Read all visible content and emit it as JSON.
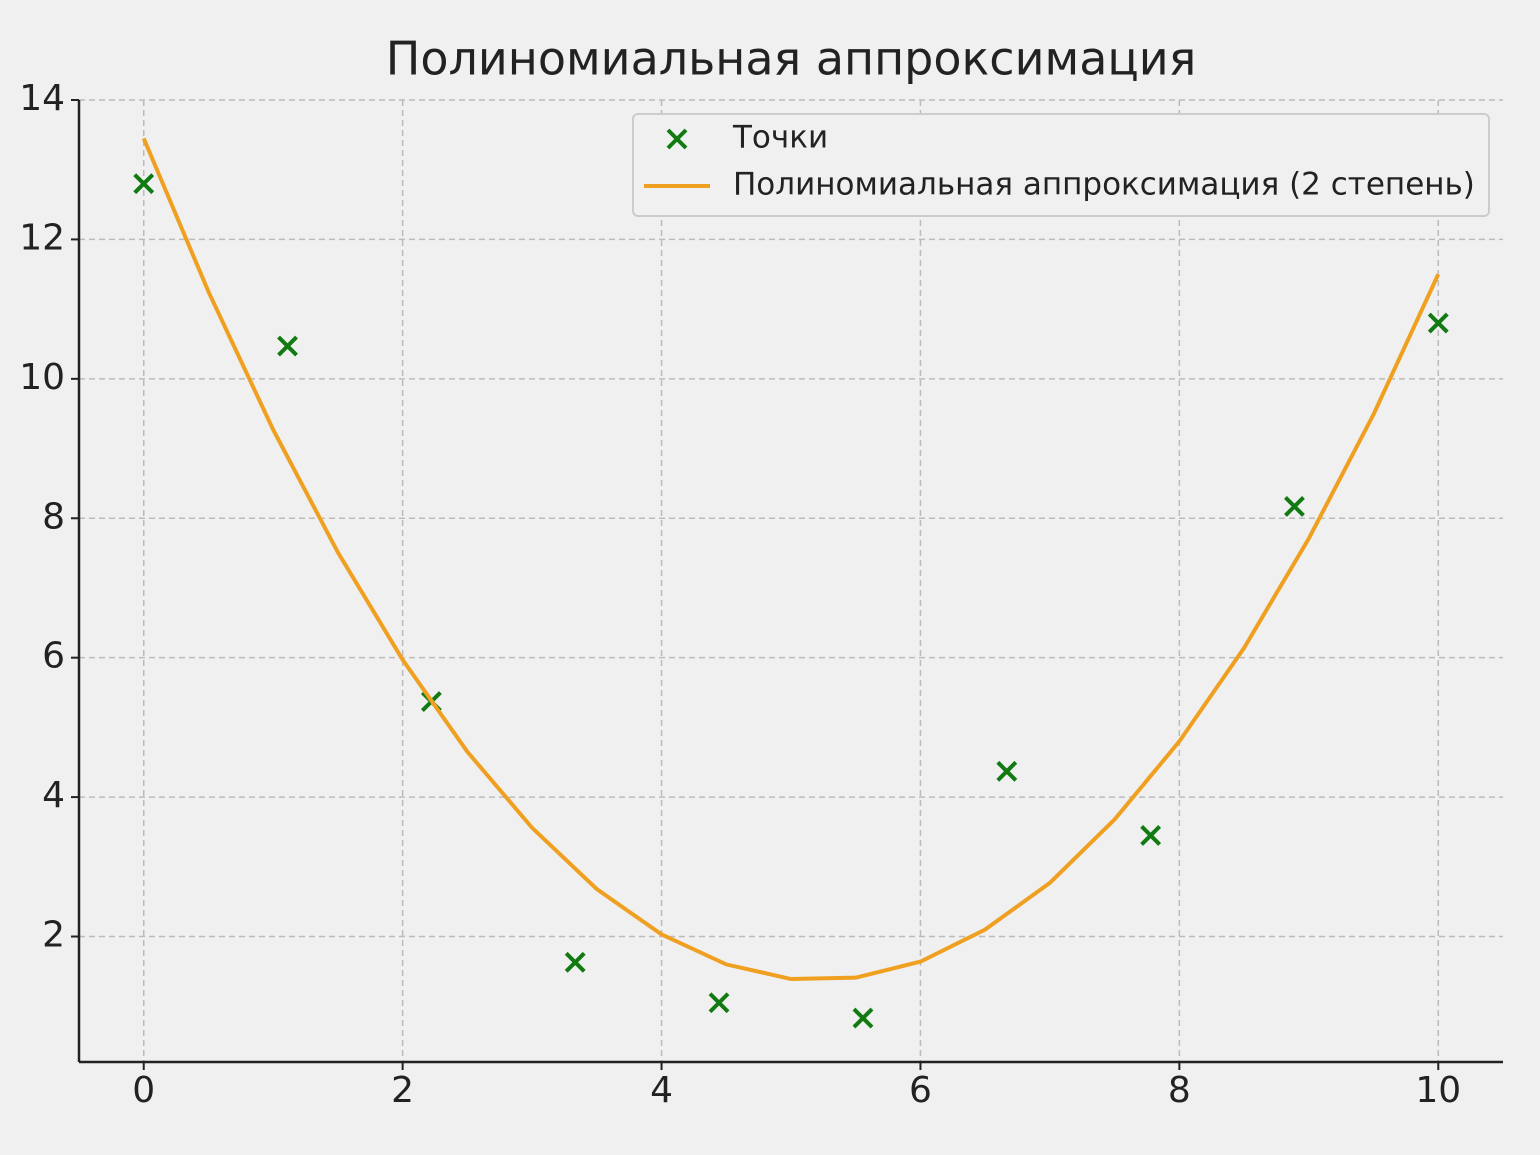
{
  "chart_data": {
    "type": "scatter",
    "title": "Полиномиальная аппроксимация",
    "series": [
      {
        "name": "Точки",
        "type": "scatter",
        "color": "#117a11",
        "marker": "x",
        "x": [
          0,
          1.111,
          2.222,
          3.333,
          4.444,
          5.556,
          6.667,
          7.778,
          8.889,
          10
        ],
        "values": [
          12.8,
          10.47,
          5.37,
          1.63,
          1.05,
          0.83,
          4.37,
          3.45,
          8.17,
          10.8
        ]
      },
      {
        "name": "Полиномиальная аппроксимация (2 степень)",
        "type": "line",
        "color": "#f0a020",
        "x": [
          0,
          0.5,
          1,
          1.5,
          2,
          2.5,
          3,
          3.5,
          4,
          4.5,
          5,
          5.5,
          6,
          6.5,
          7,
          7.5,
          8,
          8.5,
          9,
          9.5,
          10
        ],
        "values": [
          13.45,
          11.25,
          9.27,
          7.51,
          5.97,
          4.65,
          3.56,
          2.68,
          2.03,
          1.6,
          1.39,
          1.41,
          1.64,
          2.1,
          2.77,
          3.68,
          4.8,
          6.14,
          7.71,
          9.49,
          11.5
        ]
      }
    ],
    "xlim": [
      -0.5,
      10.5
    ],
    "ylim": [
      0.2,
      14.0
    ],
    "xticks": [
      0,
      2,
      4,
      6,
      8,
      10
    ],
    "yticks": [
      2,
      4,
      6,
      8,
      10,
      12,
      14
    ],
    "grid": true,
    "legend": "upper-right"
  }
}
